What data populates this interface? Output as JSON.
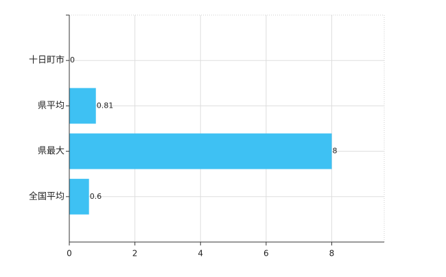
{
  "chart_data": {
    "type": "bar",
    "orientation": "horizontal",
    "categories": [
      "十日町市",
      "県平均",
      "県最大",
      "全国平均"
    ],
    "values": [
      0,
      0.81,
      8,
      0.6
    ],
    "color": "#3ec1f3",
    "xlim": [
      0,
      9.6
    ],
    "xticks": [
      0,
      2,
      4,
      6,
      8
    ],
    "grid": true
  }
}
